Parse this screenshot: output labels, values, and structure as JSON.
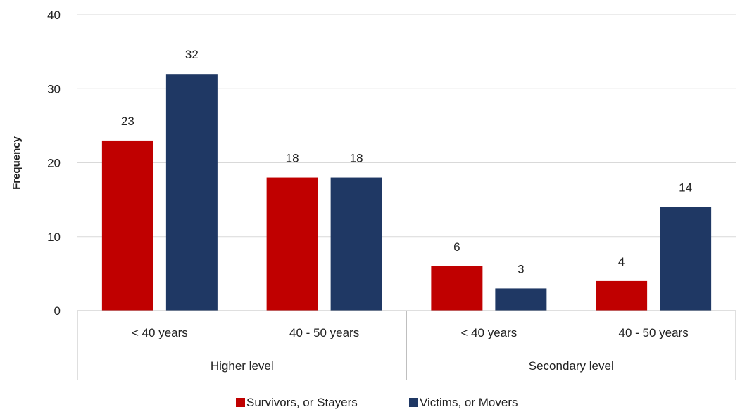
{
  "chart_data": {
    "type": "bar",
    "title": "",
    "xlabel": "",
    "ylabel": "Frequency",
    "ylim": [
      0,
      40
    ],
    "yticks": [
      0,
      10,
      20,
      30,
      40
    ],
    "grid": true,
    "legend_position": "bottom",
    "groups": [
      {
        "label": "Higher level",
        "categories": [
          "< 40 years",
          "40 - 50 years"
        ]
      },
      {
        "label": "Secondary level",
        "categories": [
          "< 40 years",
          "40 - 50 years"
        ]
      }
    ],
    "categories": [
      "< 40 years",
      "40 - 50 years",
      "< 40 years",
      "40 - 50 years"
    ],
    "series": [
      {
        "name": "Survivors, or Stayers",
        "color": "#c00000",
        "values": [
          23,
          18,
          6,
          4
        ]
      },
      {
        "name": "Victims, or Movers",
        "color": "#1f3864",
        "values": [
          32,
          18,
          3,
          14
        ]
      }
    ]
  }
}
